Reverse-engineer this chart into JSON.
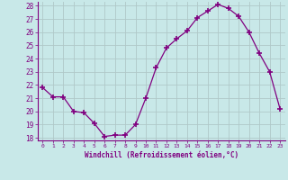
{
  "x": [
    0,
    1,
    2,
    3,
    4,
    5,
    6,
    7,
    8,
    9,
    10,
    11,
    12,
    13,
    14,
    15,
    16,
    17,
    18,
    19,
    20,
    21,
    22,
    23
  ],
  "y": [
    21.8,
    21.1,
    21.1,
    20.0,
    19.9,
    19.1,
    18.1,
    18.2,
    18.2,
    19.0,
    21.0,
    23.3,
    24.8,
    25.5,
    26.1,
    27.1,
    27.6,
    28.1,
    27.8,
    27.2,
    26.0,
    24.4,
    23.0,
    20.2
  ],
  "line_color": "#800080",
  "marker_color": "#800080",
  "bg_color": "#c8e8e8",
  "grid_color": "#b0c8c8",
  "xlabel": "Windchill (Refroidissement éolien,°C)",
  "xlabel_color": "#800080",
  "tick_color": "#800080",
  "ylim_min": 17.8,
  "ylim_max": 28.3,
  "xlim_min": -0.5,
  "xlim_max": 23.5,
  "yticks": [
    18,
    19,
    20,
    21,
    22,
    23,
    24,
    25,
    26,
    27,
    28
  ],
  "xticks": [
    0,
    1,
    2,
    3,
    4,
    5,
    6,
    7,
    8,
    9,
    10,
    11,
    12,
    13,
    14,
    15,
    16,
    17,
    18,
    19,
    20,
    21,
    22,
    23
  ]
}
